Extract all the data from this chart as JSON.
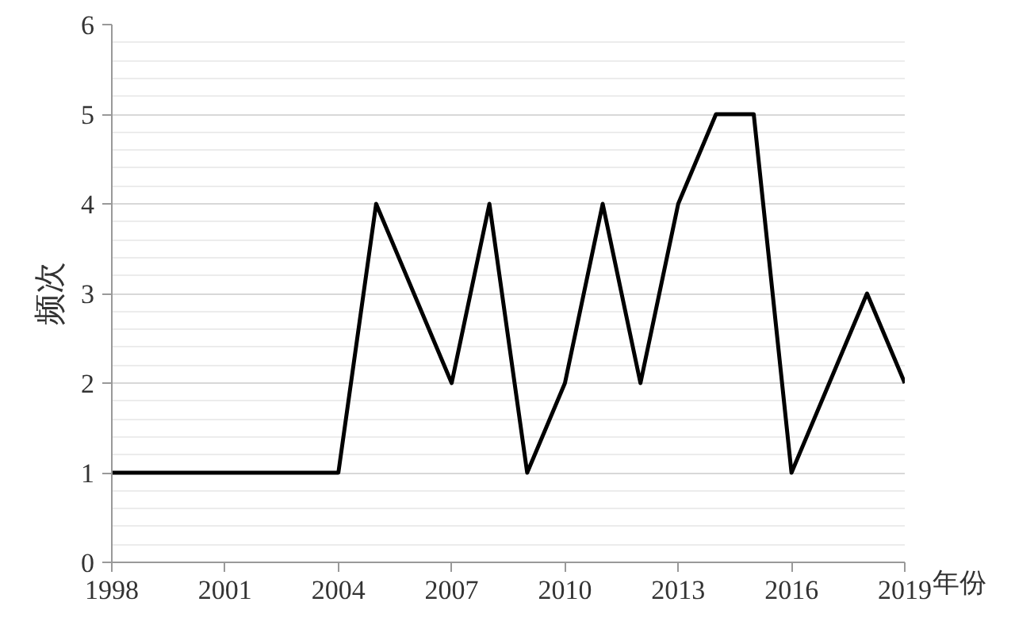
{
  "chart_data": {
    "type": "line",
    "xlabel": "年份",
    "ylabel": "频次",
    "x": [
      1998,
      1999,
      2000,
      2001,
      2002,
      2003,
      2004,
      2005,
      2006,
      2007,
      2008,
      2009,
      2010,
      2011,
      2012,
      2013,
      2014,
      2015,
      2016,
      2017,
      2018,
      2019
    ],
    "series": [
      {
        "color": "#000000",
        "values": [
          1,
          1,
          1,
          1,
          1,
          1,
          1,
          4,
          3,
          2,
          4,
          1,
          2,
          4,
          2,
          4,
          5,
          5,
          1,
          2,
          3,
          2
        ]
      }
    ],
    "xlim": [
      1998,
      2019
    ],
    "xticks": [
      1998,
      2001,
      2004,
      2007,
      2010,
      2013,
      2016,
      2019
    ],
    "ylim": [
      0,
      6
    ],
    "yticks": [
      0,
      1,
      2,
      3,
      4,
      5,
      6
    ],
    "grid": "y",
    "marker": "none",
    "line_style": "solid"
  }
}
